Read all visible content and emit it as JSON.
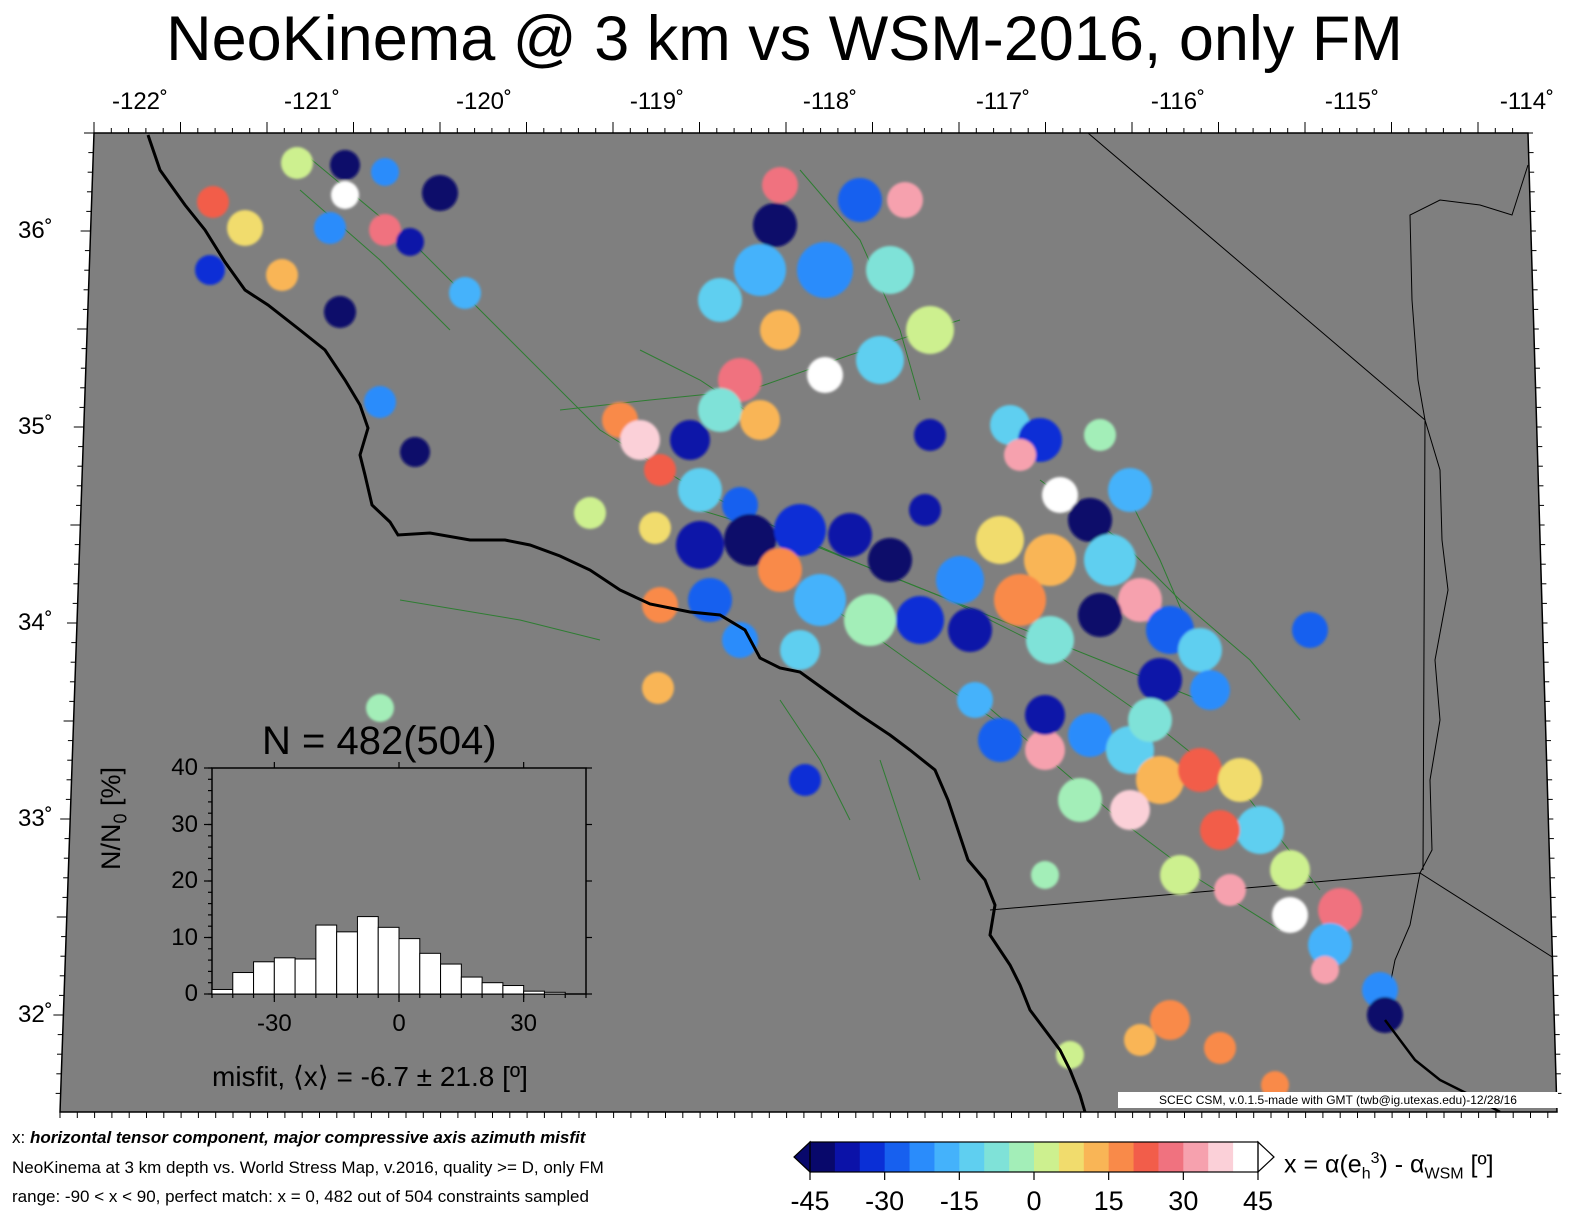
{
  "title": "NeoKinema @ 3 km vs WSM-2016, only FM",
  "map": {
    "lon_ticks": [
      "-122˚",
      "-121˚",
      "-120˚",
      "-119˚",
      "-118˚",
      "-117˚",
      "-116˚",
      "-115˚",
      "-114˚"
    ],
    "lat_ticks": [
      "36˚",
      "35˚",
      "34˚",
      "33˚",
      "32˚"
    ],
    "ocean_color": "#7f7f7f",
    "coastline_color": "#000000",
    "fault_color": "#2e7d32",
    "credit": "SCEC CSM, v.0.1.5-made with GMT (twb@ig.utexas.edu)-12/28/16"
  },
  "histogram": {
    "n_label": "N = 482(504)",
    "ylabel_main": "N/N",
    "ylabel_sub": "0",
    "ylabel_unit": " [%]",
    "yticks": [
      "40",
      "30",
      "20",
      "10",
      "0"
    ],
    "xticks": [
      "-30",
      "0",
      "30"
    ],
    "xlabel": "misfit, ⟨x⟩ = -6.7 ± 21.8 [º]",
    "bins_start": -45,
    "bin_width": 5,
    "values": [
      0.8,
      3.8,
      5.7,
      6.4,
      6.2,
      12.2,
      11.0,
      13.7,
      11.8,
      9.8,
      7.2,
      5.3,
      3.0,
      2.0,
      1.5,
      0.5,
      0.3,
      0.0
    ],
    "xlim": [
      -45,
      45
    ],
    "ylim": [
      0,
      40
    ]
  },
  "colorbar": {
    "ticks": [
      "-45",
      "-30",
      "-15",
      "0",
      "15",
      "30",
      "45"
    ],
    "label_prefix": "x = α(e",
    "label_sub": "h",
    "label_sup": "3",
    "label_mid": ") - α",
    "label_sub2": "WSM",
    "label_suffix": " [º]",
    "colors": [
      "#08086b",
      "#0b12a8",
      "#0a2fd6",
      "#1760ef",
      "#2a8cfb",
      "#44b2fb",
      "#5fcff0",
      "#7fe2d8",
      "#a3eeb8",
      "#cdf08f",
      "#f1dc6d",
      "#f9b556",
      "#f98a49",
      "#f25d4a",
      "#f0727f",
      "#f6a1ae",
      "#fbd0d8",
      "#ffffff"
    ]
  },
  "notes": {
    "line1_prefix": "x: ",
    "line1_bold": "horizontal tensor component, major compressive axis azimuth misfit",
    "line2": "NeoKinema at 3 km depth vs.  World Stress Map, v.2016, quality >= D, only FM",
    "line3": "range: -90 < x < 90, perfect match: x = 0, 482 out of 504 constraints sampled"
  }
}
